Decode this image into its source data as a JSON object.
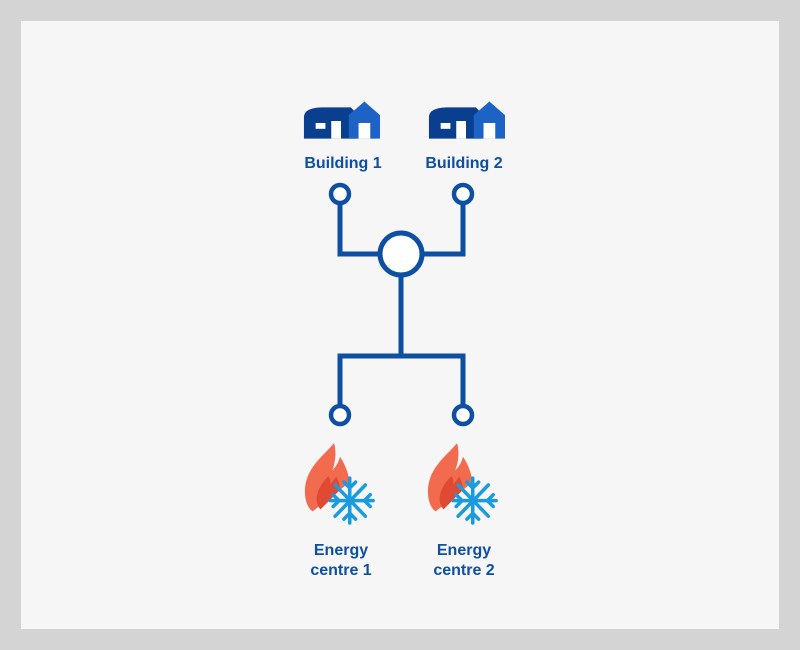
{
  "diagram": {
    "buildings": [
      {
        "label": "Building 1",
        "icon": "house-icon"
      },
      {
        "label": "Building 2",
        "icon": "house-icon"
      }
    ],
    "energy_centres": [
      {
        "line1": "Energy",
        "line2": "centre 1",
        "icon": "heating-cooling-icon"
      },
      {
        "line1": "Energy",
        "line2": "centre 2",
        "icon": "heating-cooling-icon"
      }
    ],
    "colors": {
      "network": "#0d4fa3",
      "house": "#0a3f8f",
      "flame_outer": "#f26b4f",
      "flame_inner": "#e04a32",
      "snowflake": "#1a9be0",
      "background": "#f6f6f6",
      "border": "#d4d4d4"
    }
  }
}
